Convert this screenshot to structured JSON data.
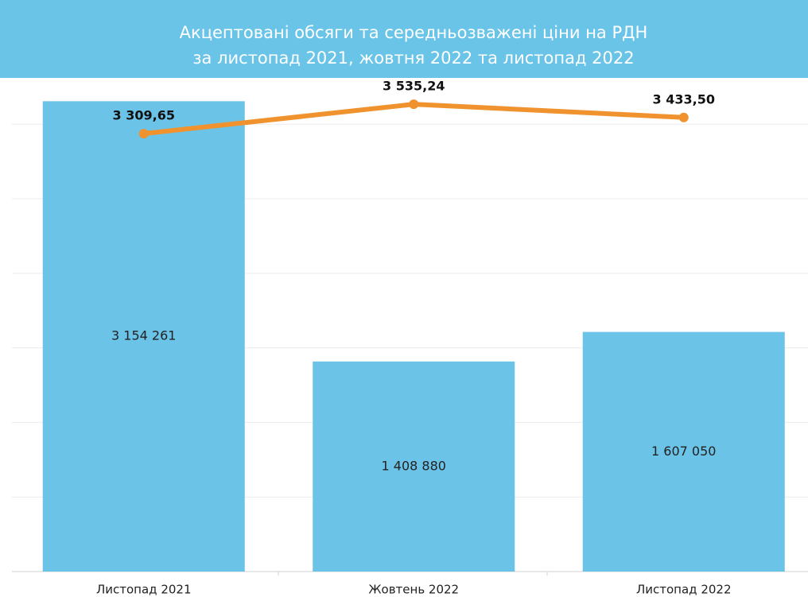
{
  "chart_data": {
    "type": "combo",
    "title": [
      "Акцептовані обсяги та середньозважені ціни на РДН",
      "за листопад 2021, жовтня 2022 та листопад 2022"
    ],
    "categories": [
      "Листопад 2021",
      "Жовтень 2022",
      "Листопад 2022"
    ],
    "series": [
      {
        "type": "bar",
        "color": "#6bc4e8",
        "values": [
          3154261,
          1408880,
          1607050
        ],
        "value_labels": [
          "3 154 261",
          "1 408 880",
          "1 607 050"
        ]
      },
      {
        "type": "line",
        "axis": "y2",
        "color": "#f0922e",
        "values": [
          3309.65,
          3535.24,
          3433.5
        ],
        "value_labels": [
          "3 309,65",
          "3 535,24",
          "3 433,50"
        ]
      }
    ],
    "ylim": [
      0,
      3300000
    ],
    "yticks": [
      0,
      500000,
      1000000,
      1500000,
      2000000,
      2500000,
      3000000
    ],
    "y2lim": [
      -50,
      3725
    ],
    "grid": true
  }
}
